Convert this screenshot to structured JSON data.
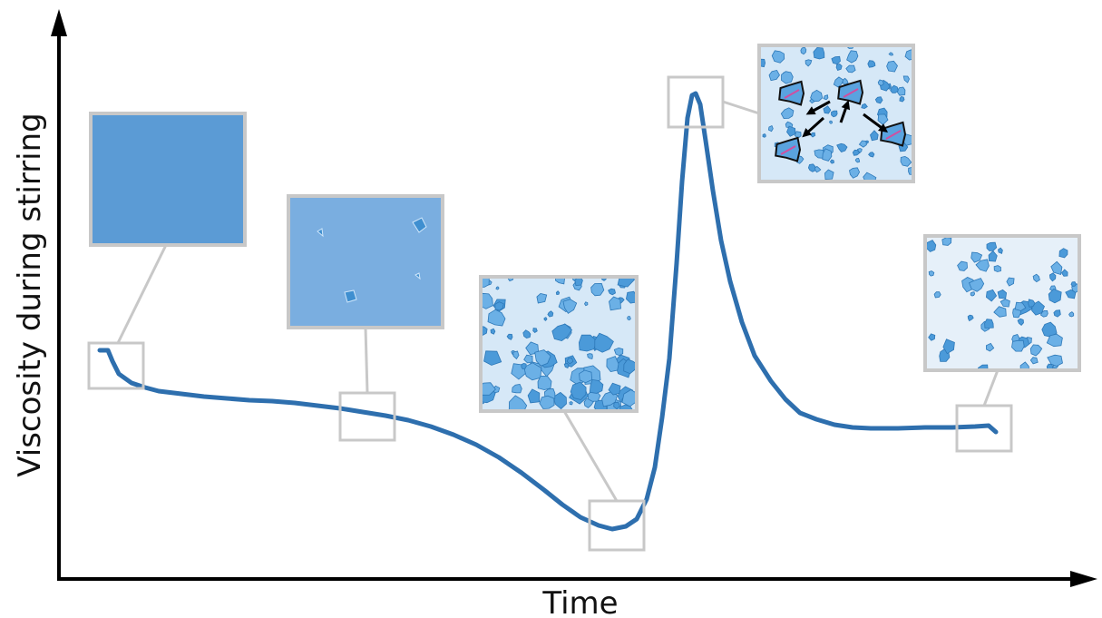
{
  "axes": {
    "y_label": "Viscosity during stirring",
    "x_label": "Time"
  }
}
